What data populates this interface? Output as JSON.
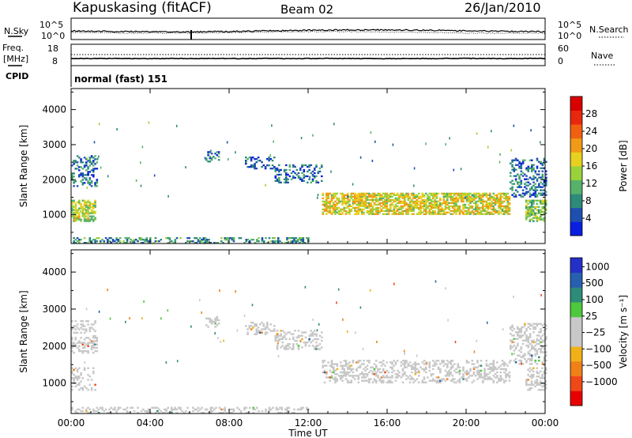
{
  "header": {
    "station": "Kapuskasing (fitACF)",
    "beam": "Beam 02",
    "date": "26/Jan/2010"
  },
  "strip1": {
    "left_label": "N.Sky",
    "right_label": "N.Search",
    "left_ticks": [
      "10^5",
      "10^0"
    ],
    "right_ticks": [
      "10^5",
      "10^0"
    ]
  },
  "strip2": {
    "left_label_1": "Freq.",
    "left_label_2": "[MHz]",
    "right_label": "Nave",
    "left_ticks": [
      "18",
      "8"
    ],
    "right_ticks": [
      "60",
      "0"
    ]
  },
  "cpid": {
    "label": "CPID",
    "value": "normal (fast) 151"
  },
  "colors": {
    "power_scale": [
      "#0a1ee0",
      "#1e4fb0",
      "#2e8b7a",
      "#56b26a",
      "#9ad23c",
      "#e8d020",
      "#f09a18",
      "#f06010",
      "#e8280e",
      "#d80000"
    ],
    "velocity_scale": [
      "#2430c8",
      "#2860b0",
      "#2e8b7a",
      "#4ec83c",
      "#c8c8c8",
      "#c8c8c8",
      "#f0b018",
      "#f08018",
      "#f04818",
      "#e80000"
    ],
    "ground_scatter": "#c8c8c8"
  },
  "chart_data": [
    {
      "type": "heatmap",
      "name": "power-panel",
      "xlabel": "",
      "ylabel": "Slant Range [km]",
      "xlim": [
        0,
        24
      ],
      "ylim": [
        180,
        4600
      ],
      "x_ticks": [
        "00:00",
        "04:00",
        "08:00",
        "12:00",
        "16:00",
        "20:00",
        "00:00"
      ],
      "y_ticks": [
        1000,
        2000,
        3000,
        4000
      ],
      "colorbar": {
        "label": "Power [dB]",
        "ticks": [
          "28",
          "24",
          "20",
          "16",
          "12",
          "8",
          "4"
        ],
        "range": [
          0,
          30
        ]
      },
      "regions": [
        {
          "t0": 0.0,
          "t1": 1.3,
          "r0": 1800,
          "r1": 2700,
          "value": 6
        },
        {
          "t0": 0.0,
          "t1": 1.2,
          "r0": 800,
          "r1": 1400,
          "value": 14
        },
        {
          "t0": 6.8,
          "t1": 7.5,
          "r0": 2500,
          "r1": 2800,
          "value": 6
        },
        {
          "t0": 8.8,
          "t1": 10.3,
          "r0": 2300,
          "r1": 2650,
          "value": 5
        },
        {
          "t0": 10.3,
          "t1": 12.7,
          "r0": 1900,
          "r1": 2400,
          "value": 6
        },
        {
          "t0": 12.7,
          "t1": 22.2,
          "r0": 1000,
          "r1": 1600,
          "value": 16
        },
        {
          "t0": 22.2,
          "t1": 24.0,
          "r0": 1500,
          "r1": 2600,
          "value": 6
        },
        {
          "t0": 23.0,
          "t1": 24.0,
          "r0": 800,
          "r1": 1400,
          "value": 12
        },
        {
          "t0": 0.0,
          "t1": 12.0,
          "r0": 180,
          "r1": 350,
          "value": 8
        }
      ]
    },
    {
      "type": "heatmap",
      "name": "velocity-panel",
      "xlabel": "Time UT",
      "ylabel": "Slant Range [km]",
      "xlim": [
        0,
        24
      ],
      "ylim": [
        180,
        4600
      ],
      "x_ticks": [
        "00:00",
        "04:00",
        "08:00",
        "12:00",
        "16:00",
        "20:00",
        "00:00"
      ],
      "y_ticks": [
        1000,
        2000,
        3000,
        4000
      ],
      "colorbar": {
        "label": "Velocity [m s⁻¹]",
        "ticks": [
          "1000",
          "500",
          "100",
          "25",
          "−25",
          "−100",
          "−500",
          "−1000"
        ],
        "range": [
          -1200,
          1200
        ]
      },
      "regions": [
        {
          "t0": 0.0,
          "t1": 1.3,
          "r0": 1800,
          "r1": 2700,
          "value": 0
        },
        {
          "t0": 0.0,
          "t1": 1.2,
          "r0": 800,
          "r1": 1400,
          "value": 0
        },
        {
          "t0": 6.8,
          "t1": 7.5,
          "r0": 2500,
          "r1": 2800,
          "value": 0
        },
        {
          "t0": 8.8,
          "t1": 10.3,
          "r0": 2300,
          "r1": 2650,
          "value": 0
        },
        {
          "t0": 10.3,
          "t1": 12.7,
          "r0": 1900,
          "r1": 2400,
          "value": 0
        },
        {
          "t0": 12.7,
          "t1": 22.2,
          "r0": 1000,
          "r1": 1600,
          "value": 0
        },
        {
          "t0": 22.2,
          "t1": 24.0,
          "r0": 1500,
          "r1": 2600,
          "value": 0
        },
        {
          "t0": 23.0,
          "t1": 24.0,
          "r0": 800,
          "r1": 1400,
          "value": 0
        },
        {
          "t0": 0.0,
          "t1": 12.0,
          "r0": 180,
          "r1": 350,
          "value": 0
        }
      ]
    }
  ]
}
